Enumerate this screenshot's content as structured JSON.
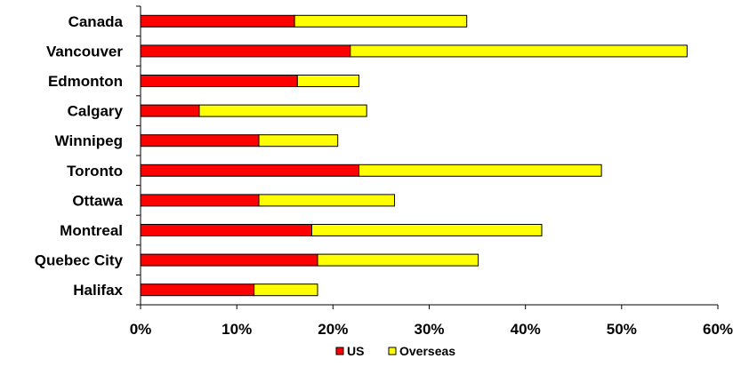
{
  "chart_data": {
    "type": "bar",
    "orientation": "horizontal",
    "stacked": true,
    "categories": [
      "Canada",
      "Vancouver",
      "Edmonton",
      "Calgary",
      "Winnipeg",
      "Toronto",
      "Ottawa",
      "Montreal",
      "Quebec City",
      "Halifax"
    ],
    "series": [
      {
        "name": "US",
        "color": "#ff0000",
        "values": [
          16.0,
          21.8,
          16.3,
          6.1,
          12.3,
          22.7,
          12.3,
          17.8,
          18.4,
          11.8
        ]
      },
      {
        "name": "Overseas",
        "color": "#ffff00",
        "values": [
          17.9,
          35.0,
          6.4,
          17.4,
          8.2,
          25.2,
          14.1,
          23.9,
          16.7,
          6.6
        ]
      }
    ],
    "xlim": [
      0,
      60
    ],
    "x_ticks": [
      "0%",
      "10%",
      "20%",
      "30%",
      "40%",
      "50%",
      "60%"
    ],
    "title": "",
    "xlabel": "",
    "ylabel": "",
    "grid": false,
    "legend_position": "bottom"
  }
}
